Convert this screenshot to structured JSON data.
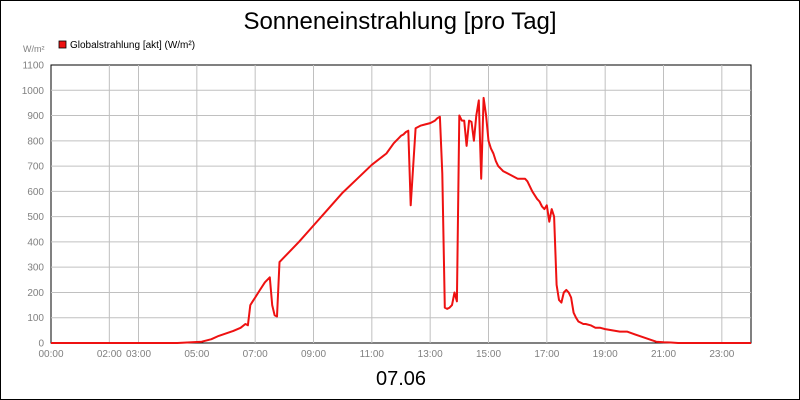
{
  "chart_data": {
    "type": "line",
    "title": "Sonneneinstrahlung [pro Tag]",
    "ylabel": "W/m²",
    "xlabel": "07.06",
    "ylim": [
      0,
      1100
    ],
    "yticks": [
      0,
      100,
      200,
      300,
      400,
      500,
      600,
      700,
      800,
      900,
      1000,
      1100
    ],
    "xlim": [
      "00:00",
      "24:00"
    ],
    "xticks": [
      "00:00",
      "02:00",
      "03:00",
      "05:00",
      "07:00",
      "09:00",
      "11:00",
      "13:00",
      "15:00",
      "17:00",
      "19:00",
      "21:00",
      "23:00"
    ],
    "grid": true,
    "legend": "top-left",
    "series": [
      {
        "name": "Globalstrahlung [akt] (W/m²)",
        "color": "#ee1111",
        "x": [
          "00:00",
          "04:20",
          "05:10",
          "05:30",
          "05:45",
          "06:00",
          "06:15",
          "06:30",
          "06:40",
          "06:45",
          "06:50",
          "06:55",
          "07:00",
          "07:10",
          "07:20",
          "07:30",
          "07:35",
          "07:40",
          "07:45",
          "07:50",
          "07:55",
          "08:00",
          "08:30",
          "09:00",
          "09:30",
          "10:00",
          "10:30",
          "11:00",
          "11:30",
          "11:45",
          "11:50",
          "11:55",
          "12:00",
          "12:05",
          "12:10",
          "12:15",
          "12:20",
          "12:30",
          "12:40",
          "12:50",
          "13:00",
          "13:05",
          "13:10",
          "13:15",
          "13:20",
          "13:25",
          "13:30",
          "13:35",
          "13:40",
          "13:45",
          "13:50",
          "13:55",
          "14:00",
          "14:05",
          "14:10",
          "14:15",
          "14:20",
          "14:25",
          "14:30",
          "14:35",
          "14:40",
          "14:45",
          "14:50",
          "14:55",
          "15:00",
          "15:05",
          "15:10",
          "15:15",
          "15:20",
          "15:30",
          "15:45",
          "16:00",
          "16:15",
          "16:20",
          "16:30",
          "16:40",
          "16:45",
          "16:50",
          "16:55",
          "17:00",
          "17:05",
          "17:10",
          "17:15",
          "17:20",
          "17:25",
          "17:30",
          "17:35",
          "17:40",
          "17:45",
          "17:50",
          "17:55",
          "18:00",
          "18:05",
          "18:10",
          "18:15",
          "18:20",
          "18:30",
          "18:40",
          "18:50",
          "19:00",
          "19:15",
          "19:30",
          "19:45",
          "20:00",
          "20:15",
          "20:30",
          "20:45",
          "21:00",
          "21:15",
          "21:30",
          "21:45",
          "22:00",
          "24:00"
        ],
        "values": [
          0,
          0,
          5,
          15,
          28,
          38,
          48,
          60,
          75,
          70,
          150,
          165,
          180,
          210,
          240,
          260,
          150,
          110,
          105,
          320,
          330,
          340,
          400,
          465,
          530,
          595,
          650,
          705,
          750,
          790,
          800,
          810,
          820,
          825,
          835,
          840,
          545,
          850,
          860,
          865,
          870,
          875,
          880,
          890,
          895,
          670,
          140,
          135,
          140,
          150,
          200,
          165,
          900,
          880,
          880,
          780,
          880,
          875,
          800,
          900,
          960,
          650,
          970,
          900,
          800,
          770,
          750,
          720,
          700,
          680,
          665,
          650,
          650,
          640,
          600,
          570,
          560,
          540,
          530,
          545,
          480,
          530,
          500,
          230,
          170,
          160,
          200,
          210,
          200,
          180,
          120,
          100,
          85,
          80,
          75,
          75,
          70,
          60,
          60,
          55,
          50,
          45,
          45,
          35,
          25,
          15,
          5,
          3,
          2,
          0,
          0,
          0,
          0
        ]
      }
    ]
  }
}
